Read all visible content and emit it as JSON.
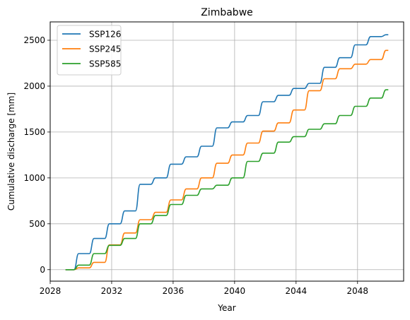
{
  "chart_data": {
    "type": "line",
    "title": "Zimbabwe",
    "xlabel": "Year",
    "ylabel": "Cumulative discharge [mm]",
    "xlim": [
      2028,
      2051
    ],
    "ylim": [
      -125,
      2700
    ],
    "xticks": [
      2028,
      2032,
      2036,
      2040,
      2044,
      2048
    ],
    "yticks": [
      0,
      500,
      1000,
      1500,
      2000,
      2500
    ],
    "grid": true,
    "legend_position": "top-left",
    "series": [
      {
        "name": "SSP126",
        "color": "#1f77b4",
        "x": [
          2029,
          2030,
          2031,
          2032,
          2033,
          2034,
          2035,
          2036,
          2037,
          2038,
          2039,
          2040,
          2041,
          2042,
          2043,
          2044,
          2045,
          2046,
          2047,
          2048,
          2049,
          2050
        ],
        "y": [
          0,
          175,
          340,
          500,
          640,
          930,
          1000,
          1150,
          1230,
          1345,
          1545,
          1610,
          1680,
          1830,
          1900,
          1975,
          2030,
          2205,
          2310,
          2450,
          2540,
          2560
        ]
      },
      {
        "name": "SSP245",
        "color": "#ff7f0e",
        "x": [
          2029,
          2030,
          2031,
          2032,
          2033,
          2034,
          2035,
          2036,
          2037,
          2038,
          2039,
          2040,
          2041,
          2042,
          2043,
          2044,
          2045,
          2046,
          2047,
          2048,
          2049,
          2050
        ],
        "y": [
          0,
          20,
          80,
          270,
          400,
          545,
          625,
          760,
          880,
          1000,
          1160,
          1250,
          1380,
          1510,
          1600,
          1740,
          1950,
          2080,
          2190,
          2240,
          2290,
          2390
        ]
      },
      {
        "name": "SSP585",
        "color": "#2ca02c",
        "x": [
          2029,
          2030,
          2031,
          2032,
          2033,
          2034,
          2035,
          2036,
          2037,
          2038,
          2039,
          2040,
          2041,
          2042,
          2043,
          2044,
          2045,
          2046,
          2047,
          2048,
          2049,
          2050
        ],
        "y": [
          0,
          50,
          175,
          265,
          340,
          500,
          590,
          710,
          810,
          880,
          920,
          1000,
          1180,
          1270,
          1390,
          1450,
          1530,
          1590,
          1680,
          1780,
          1870,
          1960
        ]
      }
    ]
  }
}
